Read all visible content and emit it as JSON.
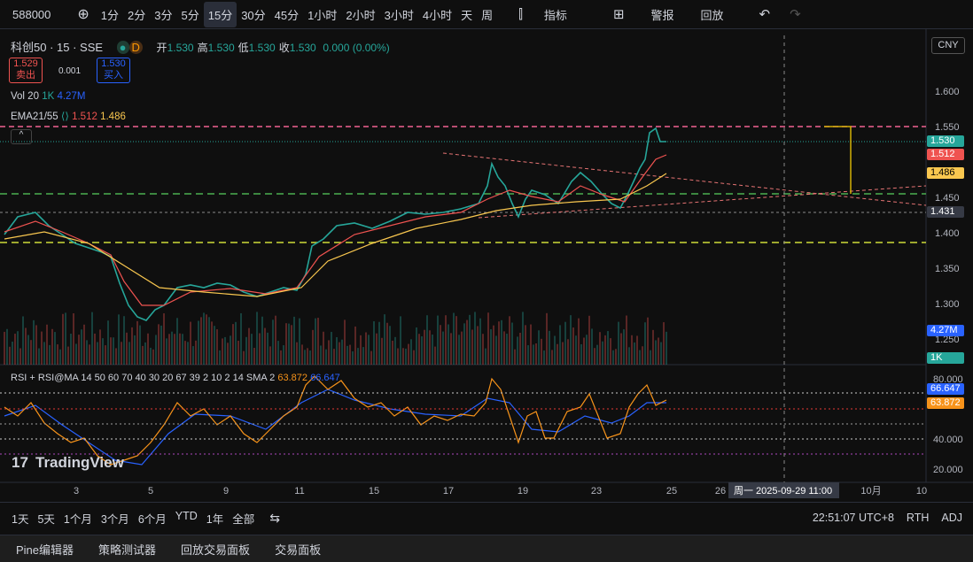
{
  "toolbar": {
    "symbol": "588000",
    "intervals": [
      "1分",
      "2分",
      "3分",
      "5分",
      "15分",
      "30分",
      "45分",
      "1小时",
      "2小时",
      "3小时",
      "4小时",
      "天",
      "周"
    ],
    "indicators": "指标",
    "alert": "警报",
    "replay": "回放"
  },
  "legend": {
    "name": "科创50 · 15 · SSE",
    "ohlc": [
      {
        "label": "开",
        "value": "1.530"
      },
      {
        "label": "高",
        "value": "1.530"
      },
      {
        "label": "低",
        "value": "1.530"
      },
      {
        "label": "收",
        "value": "1.530"
      }
    ],
    "change": "0.000 (0.00%)",
    "sell": {
      "price": "1.529",
      "label": "卖出"
    },
    "spread": "0.001",
    "buy": {
      "price": "1.530",
      "label": "买入"
    },
    "vol": {
      "name": "Vol 20",
      "v1": "1K",
      "v2": "4.27M"
    },
    "ema": {
      "name": "EMA21/55",
      "v1": "1.512",
      "v2": "1.486"
    }
  },
  "currency": "CNY",
  "price_axis": [
    "1.600",
    "1.550",
    "1.450",
    "1.400",
    "1.350",
    "1.300",
    "1.250"
  ],
  "price_badges": [
    "1.530",
    "1.512",
    "1.486",
    "1.431",
    "4.27M",
    "1K"
  ],
  "rsi": {
    "name": "RSI + RSI@MA 14 50 60 70 40 30 20 67 39 2 10 2 14 SMA 2",
    "v1": "63.872",
    "v2": "66.647",
    "axis": [
      "80.000",
      "40.000",
      "20.000"
    ],
    "badges": [
      "66.647",
      "63.872"
    ]
  },
  "time_axis": [
    "3",
    "5",
    "9",
    "11",
    "15",
    "17",
    "19",
    "23",
    "25",
    "26",
    "10月",
    "10"
  ],
  "crosshair_time": "周一 2025-09-29   11:00",
  "ranges": [
    "1天",
    "5天",
    "1个月",
    "3个月",
    "6个月",
    "YTD",
    "1年",
    "全部"
  ],
  "clock": "22:51:07 UTC+8",
  "rth": "RTH",
  "adj": "ADJ",
  "logo": "TradingView",
  "panels": [
    "Pine编辑器",
    "策略测试器",
    "回放交易面板",
    "交易面板"
  ]
}
